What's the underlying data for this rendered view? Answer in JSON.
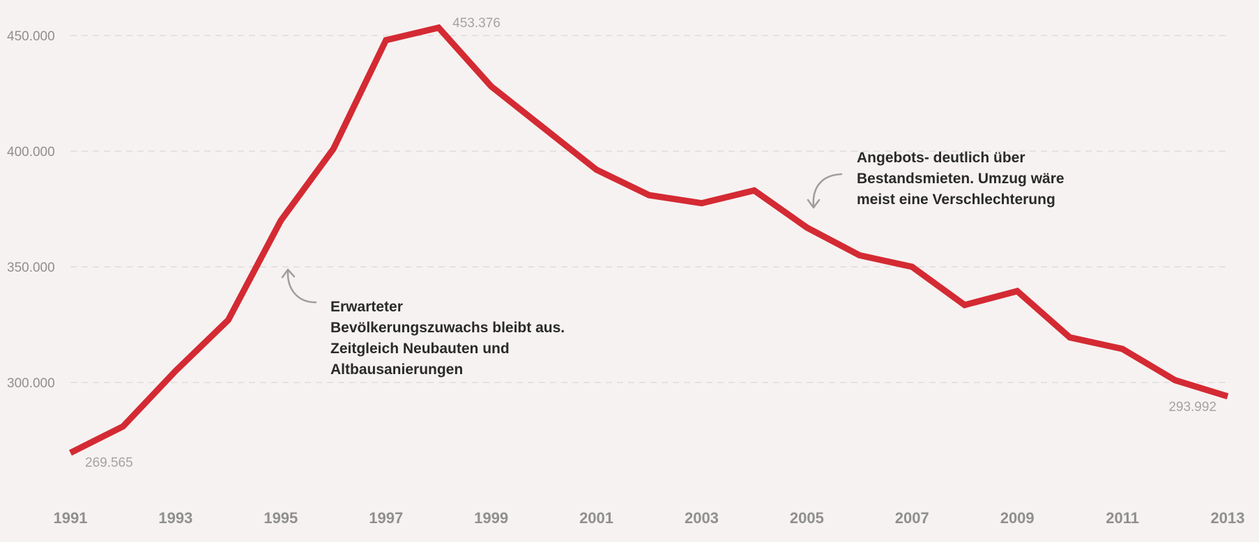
{
  "chart_data": {
    "type": "line",
    "x": [
      1991,
      1992,
      1993,
      1994,
      1995,
      1996,
      1997,
      1998,
      1999,
      2000,
      2001,
      2002,
      2003,
      2004,
      2005,
      2006,
      2007,
      2008,
      2009,
      2010,
      2011,
      2012,
      2013
    ],
    "series": [
      {
        "values": [
          269565,
          281000,
          305000,
          327000,
          370000,
          401000,
          448000,
          453376,
          428000,
          410000,
          392000,
          381000,
          377500,
          383000,
          367000,
          355000,
          350000,
          333500,
          339500,
          319500,
          314500,
          301000,
          293992
        ],
        "color": "#d42a33"
      }
    ],
    "ylim": [
      255000,
      460000
    ],
    "xlim": [
      1991,
      2013
    ],
    "yticks": [
      300000,
      350000,
      400000,
      450000
    ],
    "ytick_labels": [
      "300.000",
      "350.000",
      "400.000",
      "450.000"
    ],
    "xticks": [
      1991,
      1993,
      1995,
      1997,
      1999,
      2001,
      2003,
      2005,
      2007,
      2009,
      2011,
      2013
    ],
    "xtick_labels": [
      "1991",
      "1993",
      "1995",
      "1997",
      "1999",
      "2001",
      "2003",
      "2005",
      "2007",
      "2009",
      "2011",
      "2013"
    ],
    "grid": true,
    "data_labels": [
      {
        "x": 1991,
        "text": "269.565"
      },
      {
        "x": 1998,
        "text": "453.376"
      },
      {
        "x": 2013,
        "text": "293.992"
      }
    ],
    "annotations": [
      {
        "lines": [
          "Erwarteter",
          "Bevölkerungszuwachs bleibt aus.",
          "Zeitgleich Neubauten und",
          "Altbausanierungen"
        ]
      },
      {
        "lines": [
          "Angebots- deutlich über",
          "Bestandsmieten. Umzug wäre",
          "meist eine Verschlechterung"
        ]
      }
    ]
  }
}
